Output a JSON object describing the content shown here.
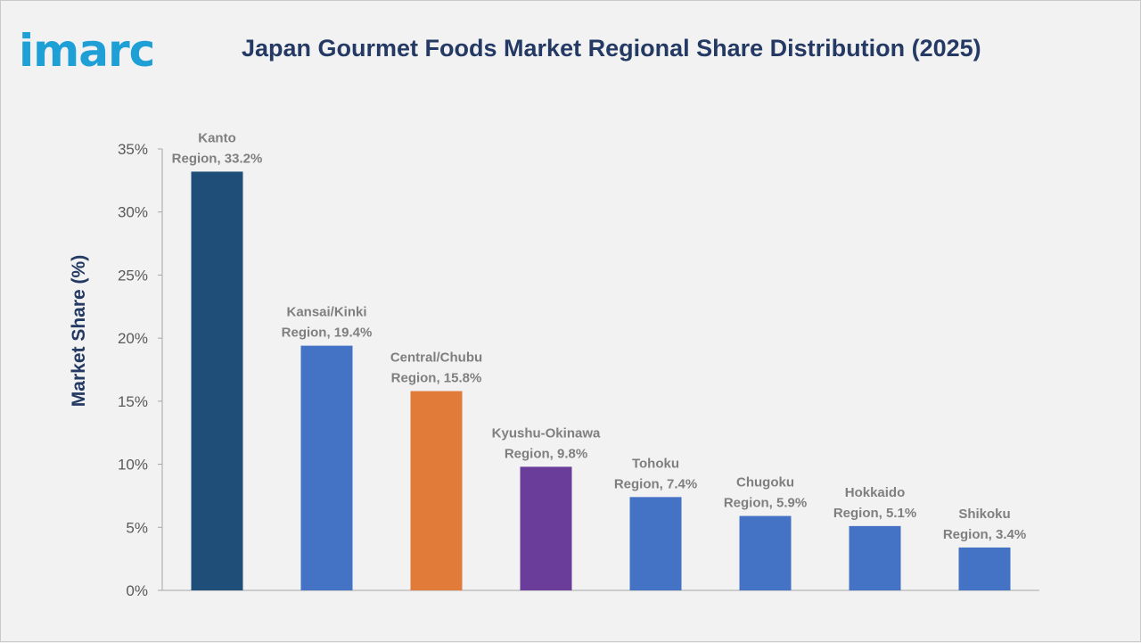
{
  "brand": {
    "logo_text": "imarc"
  },
  "chart_data": {
    "type": "bar",
    "title": "Japan Gourmet Foods Market Regional Share Distribution (2025)",
    "xlabel": "",
    "ylabel": "Market Share (%)",
    "ylim": [
      0,
      35
    ],
    "yticks": [
      "0%",
      "5%",
      "10%",
      "15%",
      "20%",
      "25%",
      "30%",
      "35%"
    ],
    "grid": false,
    "categories": [
      "Kanto Region",
      "Kansai/Kinki Region",
      "Central/Chubu Region",
      "Kyushu-Okinawa Region",
      "Tohoku Region",
      "Chugoku Region",
      "Hokkaido Region",
      "Shikoku Region"
    ],
    "values": [
      33.2,
      19.4,
      15.8,
      9.8,
      7.4,
      5.9,
      5.1,
      3.4
    ],
    "data_labels": [
      [
        "Kanto",
        "Region, 33.2%"
      ],
      [
        "Kansai/Kinki",
        "Region, 19.4%"
      ],
      [
        "Central/Chubu",
        "Region, 15.8%"
      ],
      [
        "Kyushu-Okinawa",
        "Region, 9.8%"
      ],
      [
        "Tohoku",
        "Region, 7.4%"
      ],
      [
        "Chugoku",
        "Region, 5.9%"
      ],
      [
        "Hokkaido",
        "Region, 5.1%"
      ],
      [
        "Shikoku",
        "Region, 3.4%"
      ]
    ],
    "colors": [
      "#1f4e79",
      "#4472c4",
      "#e07b39",
      "#6a3d9a",
      "#4472c4",
      "#4472c4",
      "#4472c4",
      "#4472c4"
    ]
  }
}
